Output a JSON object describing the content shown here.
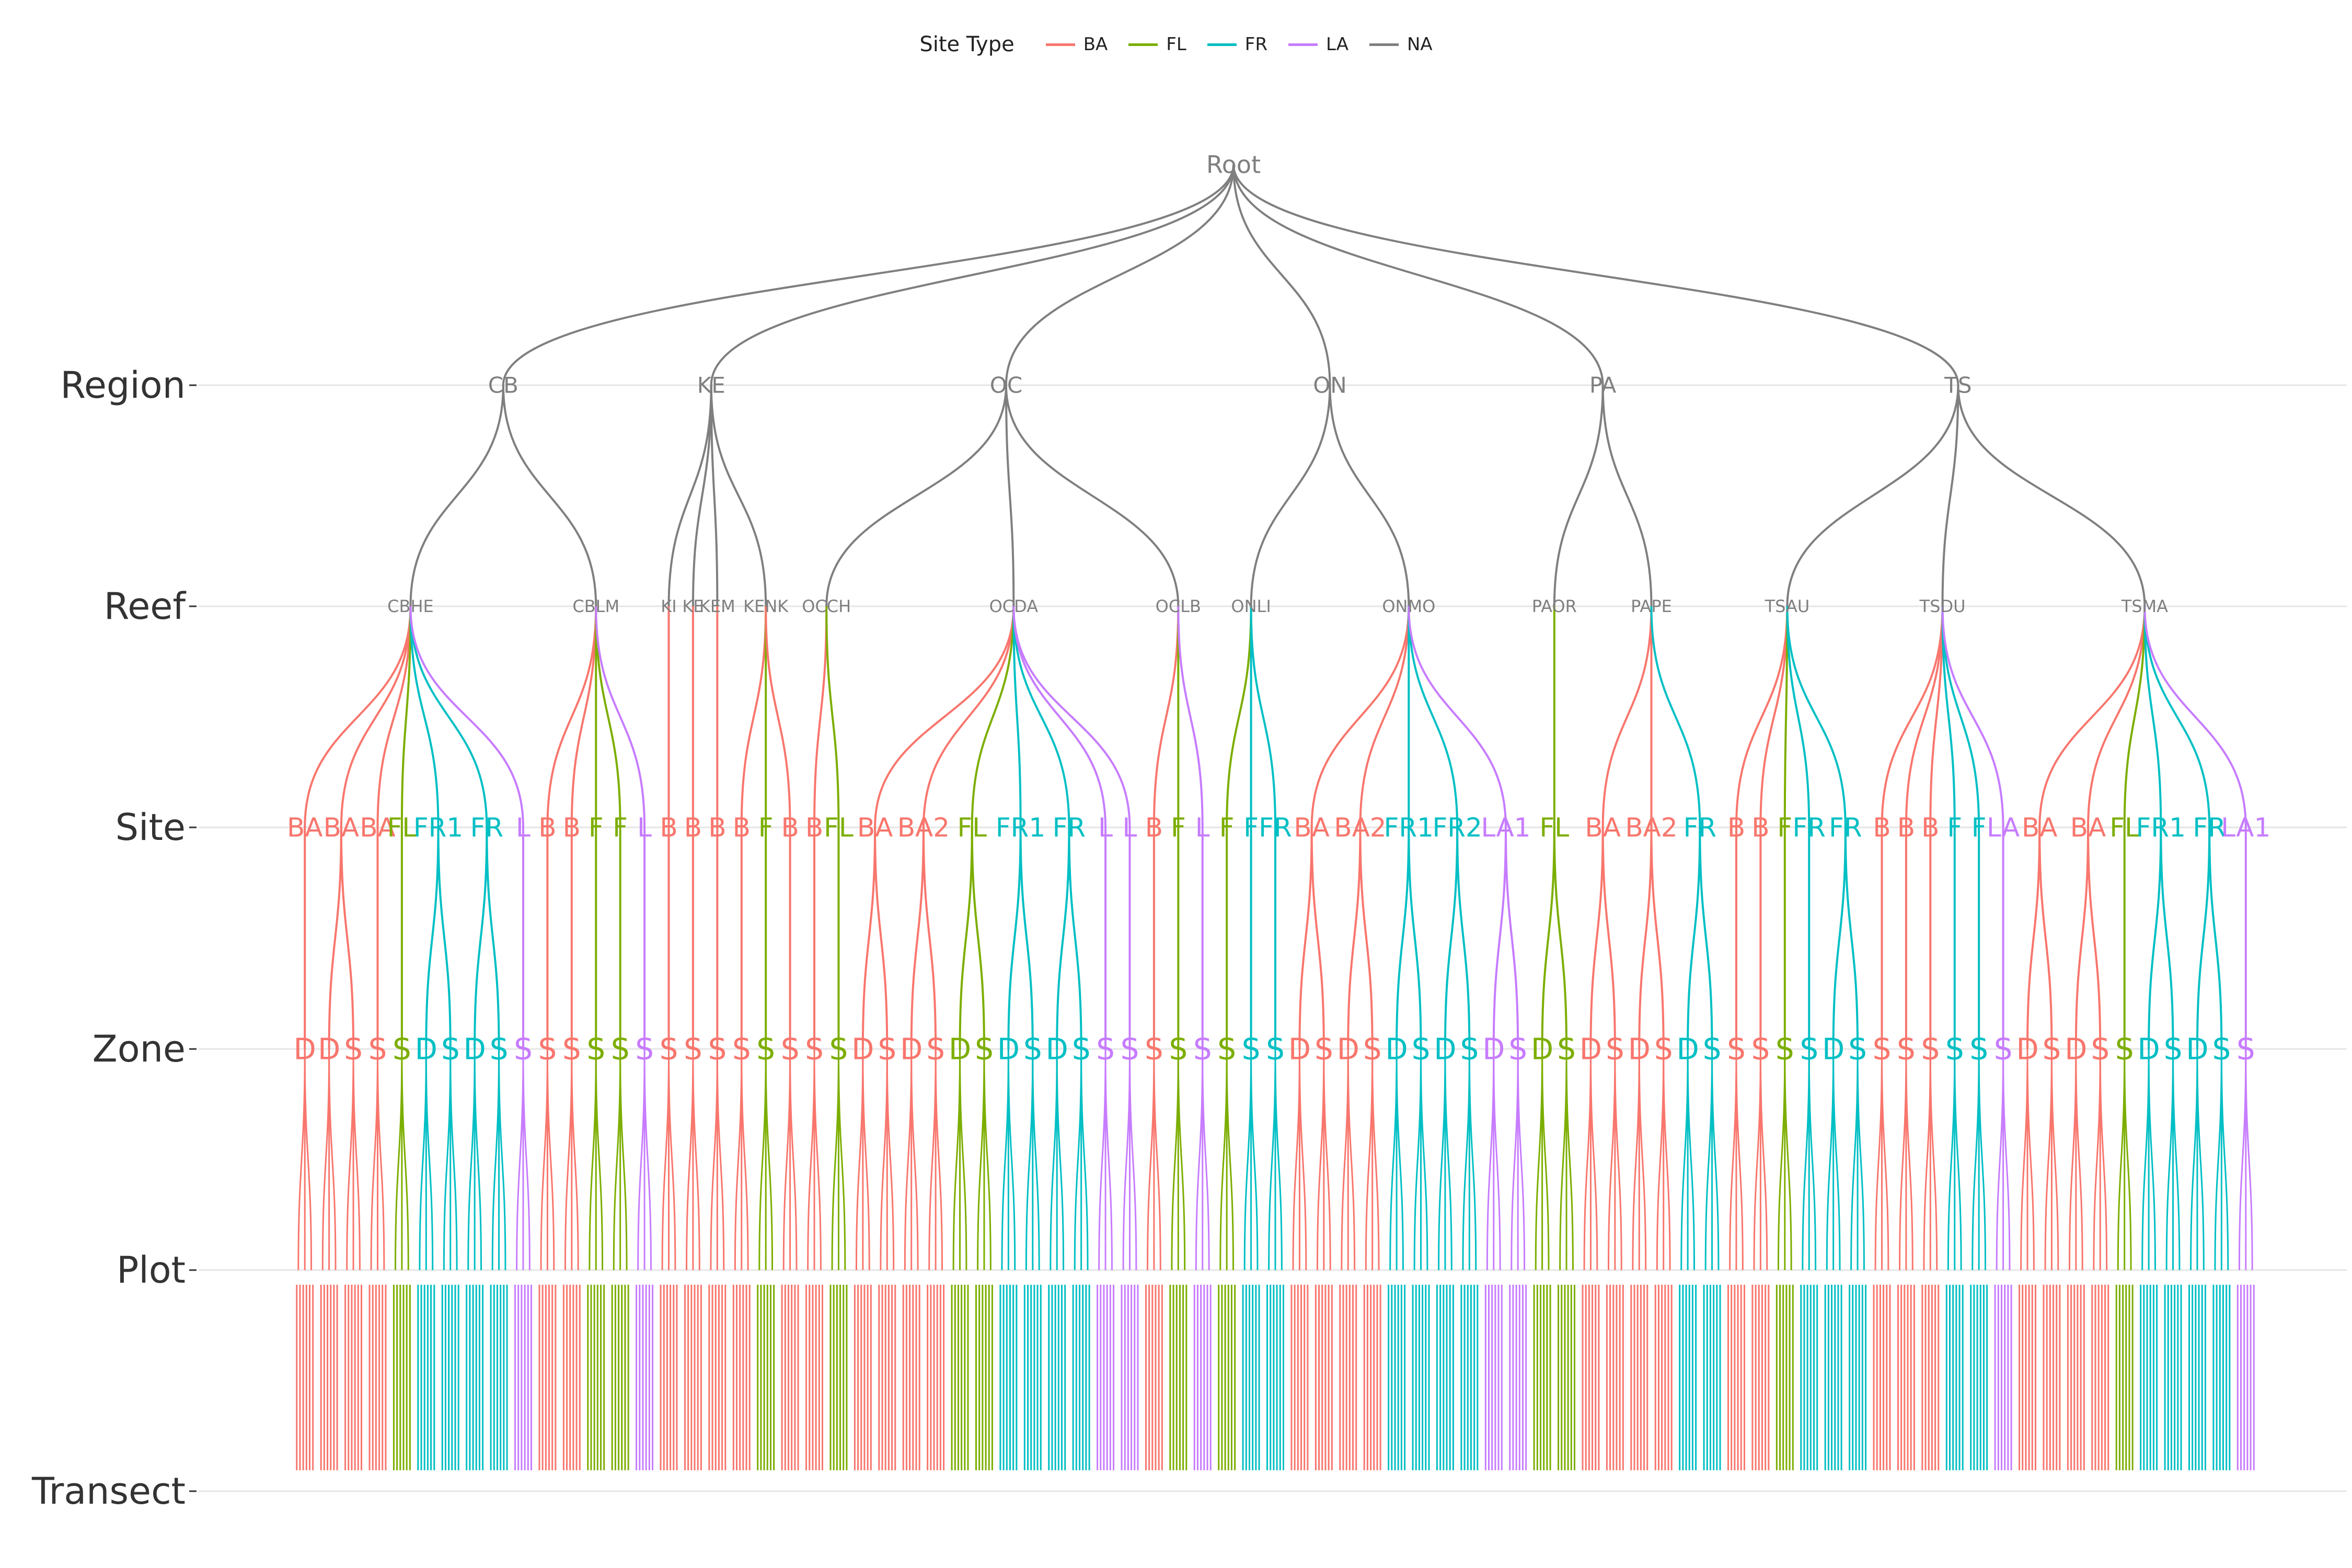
{
  "legend": {
    "title": "Site Type",
    "items": [
      {
        "key": "BA",
        "label": "BA",
        "color": "#F8766D"
      },
      {
        "key": "FL",
        "label": "FL",
        "color": "#7CAE00"
      },
      {
        "key": "FR",
        "label": "FR",
        "color": "#00BFC4"
      },
      {
        "key": "LA",
        "label": "LA",
        "color": "#C77CFF"
      },
      {
        "key": "NA",
        "label": "NA",
        "color": "#7f7f7f"
      }
    ]
  },
  "levels": [
    "Region",
    "Reef",
    "Site",
    "Zone",
    "Plot",
    "Transect"
  ],
  "root": {
    "label": "Root"
  },
  "regions": [
    {
      "label": "CB",
      "reefs": [
        {
          "label": "CBHE",
          "sites": [
            {
              "label": "BA",
              "type": "BA",
              "zones": [
                "D"
              ]
            },
            {
              "label": "BA",
              "type": "BA",
              "zones": [
                "D",
                "S"
              ]
            },
            {
              "label": "BA",
              "type": "BA",
              "zones": [
                "S"
              ]
            },
            {
              "label": "FL",
              "type": "FL",
              "zones": [
                "S"
              ]
            },
            {
              "label": "FR1",
              "type": "FR",
              "zones": [
                "D",
                "S"
              ]
            },
            {
              "label": "FR",
              "type": "FR",
              "zones": [
                "D",
                "S"
              ]
            },
            {
              "label": "L",
              "type": "LA",
              "zones": [
                "S"
              ]
            }
          ]
        },
        {
          "label": "CBLM",
          "sites": [
            {
              "label": "B",
              "type": "BA",
              "zones": [
                "S"
              ]
            },
            {
              "label": "B",
              "type": "BA",
              "zones": [
                "S"
              ]
            },
            {
              "label": "F",
              "type": "FL",
              "zones": [
                "S"
              ]
            },
            {
              "label": "F",
              "type": "FL",
              "zones": [
                "S"
              ]
            },
            {
              "label": "L",
              "type": "LA",
              "zones": [
                "S"
              ]
            }
          ]
        }
      ]
    },
    {
      "label": "KE",
      "reefs": [
        {
          "label": "KI",
          "sites": [
            {
              "label": "B",
              "type": "BA",
              "zones": [
                "S"
              ]
            }
          ]
        },
        {
          "label": "KE",
          "sites": [
            {
              "label": "B",
              "type": "BA",
              "zones": [
                "S"
              ]
            }
          ]
        },
        {
          "label": "KEM",
          "sites": [
            {
              "label": "B",
              "type": "BA",
              "zones": [
                "S"
              ]
            }
          ]
        },
        {
          "label": "KENK",
          "sites": [
            {
              "label": "B",
              "type": "BA",
              "zones": [
                "S"
              ]
            },
            {
              "label": "F",
              "type": "FL",
              "zones": [
                "S"
              ]
            },
            {
              "label": "B",
              "type": "BA",
              "zones": [
                "S"
              ]
            }
          ]
        }
      ]
    },
    {
      "label": "OC",
      "reefs": [
        {
          "label": "OCCH",
          "sites": [
            {
              "label": "B",
              "type": "BA",
              "zones": [
                "S"
              ]
            },
            {
              "label": "FL",
              "type": "FL",
              "zones": [
                "S"
              ]
            }
          ]
        },
        {
          "label": "OCDA",
          "sites": [
            {
              "label": "BA",
              "type": "BA",
              "zones": [
                "D",
                "S"
              ]
            },
            {
              "label": "BA2",
              "type": "BA",
              "zones": [
                "D",
                "S"
              ]
            },
            {
              "label": "FL",
              "type": "FL",
              "zones": [
                "D",
                "S"
              ]
            },
            {
              "label": "FR1",
              "type": "FR",
              "zones": [
                "D",
                "S"
              ]
            },
            {
              "label": "FR",
              "type": "FR",
              "zones": [
                "D",
                "S"
              ]
            },
            {
              "label": "L",
              "type": "LA",
              "zones": [
                "S"
              ]
            },
            {
              "label": "L",
              "type": "LA",
              "zones": [
                "S"
              ]
            }
          ]
        },
        {
          "label": "OCLB",
          "sites": [
            {
              "label": "B",
              "type": "BA",
              "zones": [
                "S"
              ]
            },
            {
              "label": "F",
              "type": "FL",
              "zones": [
                "S"
              ]
            },
            {
              "label": "L",
              "type": "LA",
              "zones": [
                "S"
              ]
            }
          ]
        }
      ]
    },
    {
      "label": "ON",
      "reefs": [
        {
          "label": "ONLI",
          "sites": [
            {
              "label": "F",
              "type": "FL",
              "zones": [
                "S"
              ]
            },
            {
              "label": "F",
              "type": "FR",
              "zones": [
                "S"
              ]
            },
            {
              "label": "FR",
              "type": "FR",
              "zones": [
                "S"
              ]
            }
          ]
        },
        {
          "label": "ONMO",
          "sites": [
            {
              "label": "BA",
              "type": "BA",
              "zones": [
                "D",
                "S"
              ]
            },
            {
              "label": "BA2",
              "type": "BA",
              "zones": [
                "D",
                "S"
              ]
            },
            {
              "label": "FR1",
              "type": "FR",
              "zones": [
                "D",
                "S"
              ]
            },
            {
              "label": "FR2",
              "type": "FR",
              "zones": [
                "D",
                "S"
              ]
            },
            {
              "label": "LA1",
              "type": "LA",
              "zones": [
                "D",
                "S"
              ]
            }
          ]
        }
      ]
    },
    {
      "label": "PA",
      "reefs": [
        {
          "label": "PAOR",
          "sites": [
            {
              "label": "FL",
              "type": "FL",
              "zones": [
                "D",
                "S"
              ]
            }
          ]
        },
        {
          "label": "PAPE",
          "sites": [
            {
              "label": "BA",
              "type": "BA",
              "zones": [
                "D",
                "S"
              ]
            },
            {
              "label": "BA2",
              "type": "BA",
              "zones": [
                "D",
                "S"
              ]
            },
            {
              "label": "FR",
              "type": "FR",
              "zones": [
                "D",
                "S"
              ]
            }
          ]
        }
      ]
    },
    {
      "label": "TS",
      "reefs": [
        {
          "label": "TSAU",
          "sites": [
            {
              "label": "B",
              "type": "BA",
              "zones": [
                "S"
              ]
            },
            {
              "label": "B",
              "type": "BA",
              "zones": [
                "S"
              ]
            },
            {
              "label": "F",
              "type": "FL",
              "zones": [
                "S"
              ]
            },
            {
              "label": "FR",
              "type": "FR",
              "zones": [
                "S"
              ]
            },
            {
              "label": "FR",
              "type": "FR",
              "zones": [
                "D",
                "S"
              ]
            }
          ]
        },
        {
          "label": "TSDU",
          "sites": [
            {
              "label": "B",
              "type": "BA",
              "zones": [
                "S"
              ]
            },
            {
              "label": "B",
              "type": "BA",
              "zones": [
                "S"
              ]
            },
            {
              "label": "B",
              "type": "BA",
              "zones": [
                "S"
              ]
            },
            {
              "label": "F",
              "type": "FR",
              "zones": [
                "S"
              ]
            },
            {
              "label": "F",
              "type": "FR",
              "zones": [
                "S"
              ]
            },
            {
              "label": "LA",
              "type": "LA",
              "zones": [
                "S"
              ]
            }
          ]
        },
        {
          "label": "TSMA",
          "sites": [
            {
              "label": "BA",
              "type": "BA",
              "zones": [
                "D",
                "S"
              ]
            },
            {
              "label": "BA",
              "type": "BA",
              "zones": [
                "D",
                "S"
              ]
            },
            {
              "label": "FL",
              "type": "FL",
              "zones": [
                "S"
              ]
            },
            {
              "label": "FR1",
              "type": "FR",
              "zones": [
                "D",
                "S"
              ]
            },
            {
              "label": "FR",
              "type": "FR",
              "zones": [
                "D",
                "S"
              ]
            },
            {
              "label": "LA1",
              "type": "LA",
              "zones": [
                "S"
              ]
            }
          ]
        }
      ]
    }
  ]
}
